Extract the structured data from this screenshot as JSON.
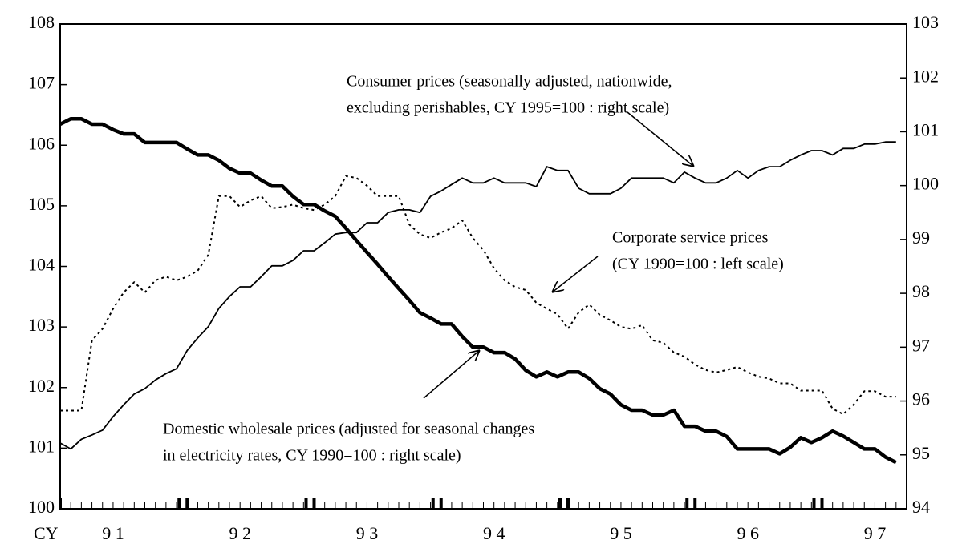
{
  "chart_data": {
    "type": "line",
    "x_label": "CY",
    "categories": [
      null,
      null,
      null,
      null,
      null,
      "9 1",
      null,
      null,
      null,
      null,
      null,
      null,
      null,
      null,
      null,
      null,
      null,
      "9 2",
      null,
      null,
      null,
      null,
      null,
      null,
      null,
      null,
      null,
      null,
      null,
      "9 3",
      null,
      null,
      null,
      null,
      null,
      null,
      null,
      null,
      null,
      null,
      null,
      "9 4",
      null,
      null,
      null,
      null,
      null,
      null,
      null,
      null,
      null,
      null,
      null,
      "9 5",
      null,
      null,
      null,
      null,
      null,
      null,
      null,
      null,
      null,
      null,
      null,
      "9 6",
      null,
      null,
      null,
      null,
      null,
      null,
      null,
      null,
      null,
      null,
      null,
      "9 7",
      null,
      null
    ],
    "ylim": [
      100,
      108
    ],
    "yticks": [
      100,
      101,
      102,
      103,
      104,
      105,
      106,
      107,
      108
    ],
    "y2lim": [
      94,
      103
    ],
    "y2ticks": [
      94,
      95,
      96,
      97,
      98,
      99,
      100,
      101,
      102,
      103
    ],
    "series": [
      {
        "label_lines": [
          "Consumer prices (seasonally adjusted, nationwide,",
          "excluding perishables, CY 1995=100 : right scale)"
        ],
        "axis": "y2",
        "color": "#000000",
        "style": "thin",
        "values": [
          95.22,
          95.11,
          95.29,
          95.37,
          95.46,
          95.71,
          95.93,
          96.13,
          96.23,
          96.39,
          96.51,
          96.6,
          96.94,
          97.17,
          97.38,
          97.72,
          97.94,
          98.12,
          98.12,
          98.31,
          98.51,
          98.51,
          98.61,
          98.79,
          98.79,
          98.94,
          99.1,
          99.13,
          99.13,
          99.31,
          99.31,
          99.5,
          99.55,
          99.55,
          99.5,
          99.8,
          99.9,
          100.02,
          100.14,
          100.05,
          100.05,
          100.14,
          100.05,
          100.05,
          100.05,
          99.98,
          100.35,
          100.28,
          100.28,
          99.95,
          99.85,
          99.85,
          99.85,
          99.95,
          100.14,
          100.14,
          100.14,
          100.14,
          100.05,
          100.25,
          100.14,
          100.05,
          100.05,
          100.14,
          100.28,
          100.14,
          100.28,
          100.35,
          100.35,
          100.47,
          100.57,
          100.65,
          100.65,
          100.57,
          100.69,
          100.69,
          100.77,
          100.77,
          100.81,
          100.81
        ]
      },
      {
        "label_lines": [
          "Corporate service prices",
          "(CY 1990=100 : left scale)"
        ],
        "color": "#000000",
        "style": "dotted",
        "values": [
          101.62,
          101.62,
          101.62,
          102.78,
          102.97,
          103.3,
          103.57,
          103.74,
          103.57,
          103.77,
          103.83,
          103.77,
          103.83,
          103.93,
          104.19,
          105.16,
          105.16,
          104.98,
          105.09,
          105.16,
          104.96,
          104.98,
          105.02,
          104.96,
          104.93,
          105.02,
          105.16,
          105.49,
          105.46,
          105.33,
          105.16,
          105.16,
          105.16,
          104.69,
          104.53,
          104.47,
          104.56,
          104.63,
          104.76,
          104.47,
          104.27,
          103.97,
          103.77,
          103.66,
          103.61,
          103.4,
          103.3,
          103.21,
          102.97,
          103.24,
          103.37,
          103.2,
          103.11,
          103.0,
          102.97,
          103.03,
          102.78,
          102.74,
          102.58,
          102.51,
          102.38,
          102.29,
          102.25,
          102.29,
          102.34,
          102.25,
          102.18,
          102.15,
          102.07,
          102.07,
          101.95,
          101.95,
          101.95,
          101.65,
          101.56,
          101.72,
          101.94,
          101.94,
          101.85,
          101.85
        ]
      },
      {
        "label_lines": [
          "Domestic wholesale prices (adjusted for seasonal changes",
          "in electricity rates, CY 1990=100 : right scale)"
        ],
        "axis": "y2",
        "color": "#000000",
        "style": "thick",
        "values": [
          101.14,
          101.24,
          101.24,
          101.14,
          101.14,
          101.04,
          100.96,
          100.96,
          100.8,
          100.8,
          100.8,
          100.8,
          100.68,
          100.57,
          100.57,
          100.47,
          100.32,
          100.23,
          100.23,
          100.1,
          99.99,
          99.99,
          99.8,
          99.65,
          99.65,
          99.53,
          99.43,
          99.21,
          98.98,
          98.76,
          98.54,
          98.31,
          98.09,
          97.87,
          97.64,
          97.54,
          97.43,
          97.43,
          97.2,
          97.0,
          97.0,
          96.9,
          96.9,
          96.78,
          96.57,
          96.45,
          96.54,
          96.45,
          96.54,
          96.54,
          96.42,
          96.23,
          96.13,
          95.93,
          95.83,
          95.83,
          95.74,
          95.74,
          95.83,
          95.53,
          95.53,
          95.44,
          95.44,
          95.34,
          95.11,
          95.11,
          95.11,
          95.11,
          95.02,
          95.14,
          95.32,
          95.23,
          95.32,
          95.44,
          95.35,
          95.23,
          95.11,
          95.11,
          94.96,
          94.86
        ]
      }
    ]
  }
}
